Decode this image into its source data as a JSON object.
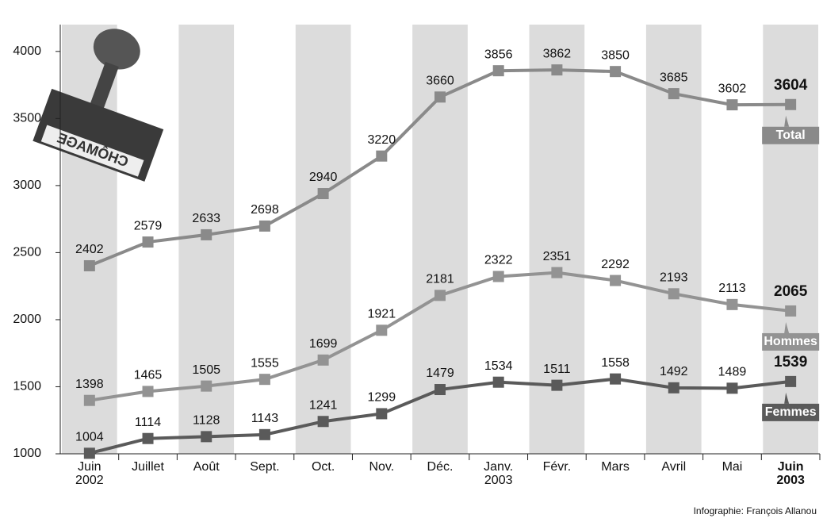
{
  "chart_data": {
    "type": "line",
    "categories": [
      "Juin\n2002",
      "Juillet",
      "Août",
      "Sept.",
      "Oct.",
      "Nov.",
      "Déc.",
      "Janv.\n2003",
      "Févr.",
      "Mars",
      "Avril",
      "Mai",
      "Juin\n2003"
    ],
    "series": [
      {
        "name": "Total",
        "color": "#8a8a8a",
        "values": [
          2402,
          2579,
          2633,
          2698,
          2940,
          3220,
          3660,
          3856,
          3862,
          3850,
          3685,
          3602,
          3604
        ]
      },
      {
        "name": "Hommes",
        "color": "#939393",
        "values": [
          1398,
          1465,
          1505,
          1555,
          1699,
          1921,
          2181,
          2322,
          2351,
          2292,
          2193,
          2113,
          2065
        ]
      },
      {
        "name": "Femmes",
        "color": "#5a5a5a",
        "values": [
          1004,
          1114,
          1128,
          1143,
          1241,
          1299,
          1479,
          1534,
          1511,
          1558,
          1492,
          1489,
          1539
        ]
      }
    ],
    "ylim": [
      1000,
      4200
    ],
    "yticks": [
      1000,
      1500,
      2000,
      2500,
      3000,
      3500,
      4000
    ],
    "grid": false,
    "stamp_text": "CHÔMAGE",
    "credit": "Infographie: François Allanou"
  }
}
